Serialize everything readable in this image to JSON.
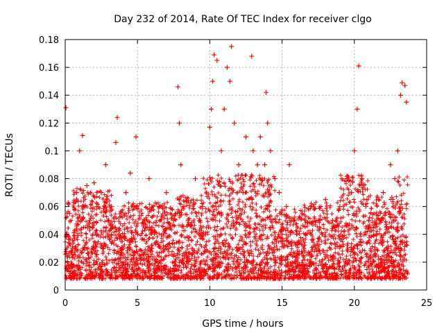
{
  "chart_data": {
    "type": "scatter",
    "title": "Day 232 of 2014, Rate Of TEC Index for receiver clgo",
    "xlabel": "GPS time / hours",
    "ylabel": "ROTI / TECUs",
    "xlim": [
      0,
      25
    ],
    "ylim": [
      0,
      0.18
    ],
    "x_ticks": [
      "0",
      "5",
      "10",
      "15",
      "20",
      "25"
    ],
    "y_ticks": [
      "0",
      "0.02",
      "0.04",
      "0.06",
      "0.08",
      "0.1",
      "0.12",
      "0.14",
      "0.16",
      "0.18"
    ],
    "grid": true,
    "marker": "plus",
    "color": "#ff0000",
    "series": [
      {
        "x": [
          0.05,
          0.1,
          0.15,
          0.3,
          0.5,
          0.8,
          1.0,
          1.2,
          1.25,
          1.5,
          1.7,
          2.0,
          2.2,
          2.5,
          2.8,
          3.0,
          3.2,
          3.5,
          3.6,
          3.7,
          4.0,
          4.2,
          4.5,
          4.7,
          4.9,
          5.0,
          5.5,
          5.8,
          6.0,
          6.5,
          7.0,
          7.5,
          7.8,
          7.9,
          8.0,
          8.2,
          8.5,
          9.0,
          9.5,
          9.7,
          10.0,
          10.1,
          10.2,
          10.3,
          10.5,
          10.8,
          11.0,
          11.2,
          11.4,
          11.5,
          11.7,
          12.0,
          12.3,
          12.5,
          12.8,
          12.9,
          13.0,
          13.3,
          13.5,
          13.8,
          13.9,
          14.0,
          14.2,
          14.5,
          14.8,
          15.0,
          15.3,
          15.5,
          15.8,
          16.0,
          16.5,
          17.0,
          17.5,
          17.8,
          18.0,
          18.5,
          19.0,
          19.5,
          19.8,
          20.0,
          20.2,
          20.3,
          20.5,
          20.8,
          21.0,
          21.5,
          22.0,
          22.5,
          22.8,
          23.0,
          23.2,
          23.3,
          23.5,
          23.6
        ],
        "y": [
          0.131,
          0.04,
          0.02,
          0.055,
          0.03,
          0.07,
          0.1,
          0.111,
          0.06,
          0.075,
          0.05,
          0.077,
          0.04,
          0.07,
          0.09,
          0.05,
          0.06,
          0.106,
          0.124,
          0.04,
          0.03,
          0.07,
          0.084,
          0.06,
          0.11,
          0.04,
          0.05,
          0.08,
          0.03,
          0.06,
          0.07,
          0.05,
          0.146,
          0.12,
          0.09,
          0.06,
          0.05,
          0.08,
          0.06,
          0.04,
          0.117,
          0.13,
          0.15,
          0.169,
          0.165,
          0.1,
          0.13,
          0.16,
          0.15,
          0.175,
          0.12,
          0.09,
          0.07,
          0.11,
          0.06,
          0.168,
          0.1,
          0.09,
          0.11,
          0.09,
          0.142,
          0.12,
          0.1,
          0.08,
          0.07,
          0.04,
          0.06,
          0.09,
          0.05,
          0.04,
          0.03,
          0.06,
          0.05,
          0.04,
          0.065,
          0.05,
          0.06,
          0.08,
          0.07,
          0.1,
          0.13,
          0.161,
          0.08,
          0.06,
          0.05,
          0.04,
          0.07,
          0.09,
          0.08,
          0.1,
          0.14,
          0.149,
          0.147,
          0.135
        ]
      }
    ]
  }
}
